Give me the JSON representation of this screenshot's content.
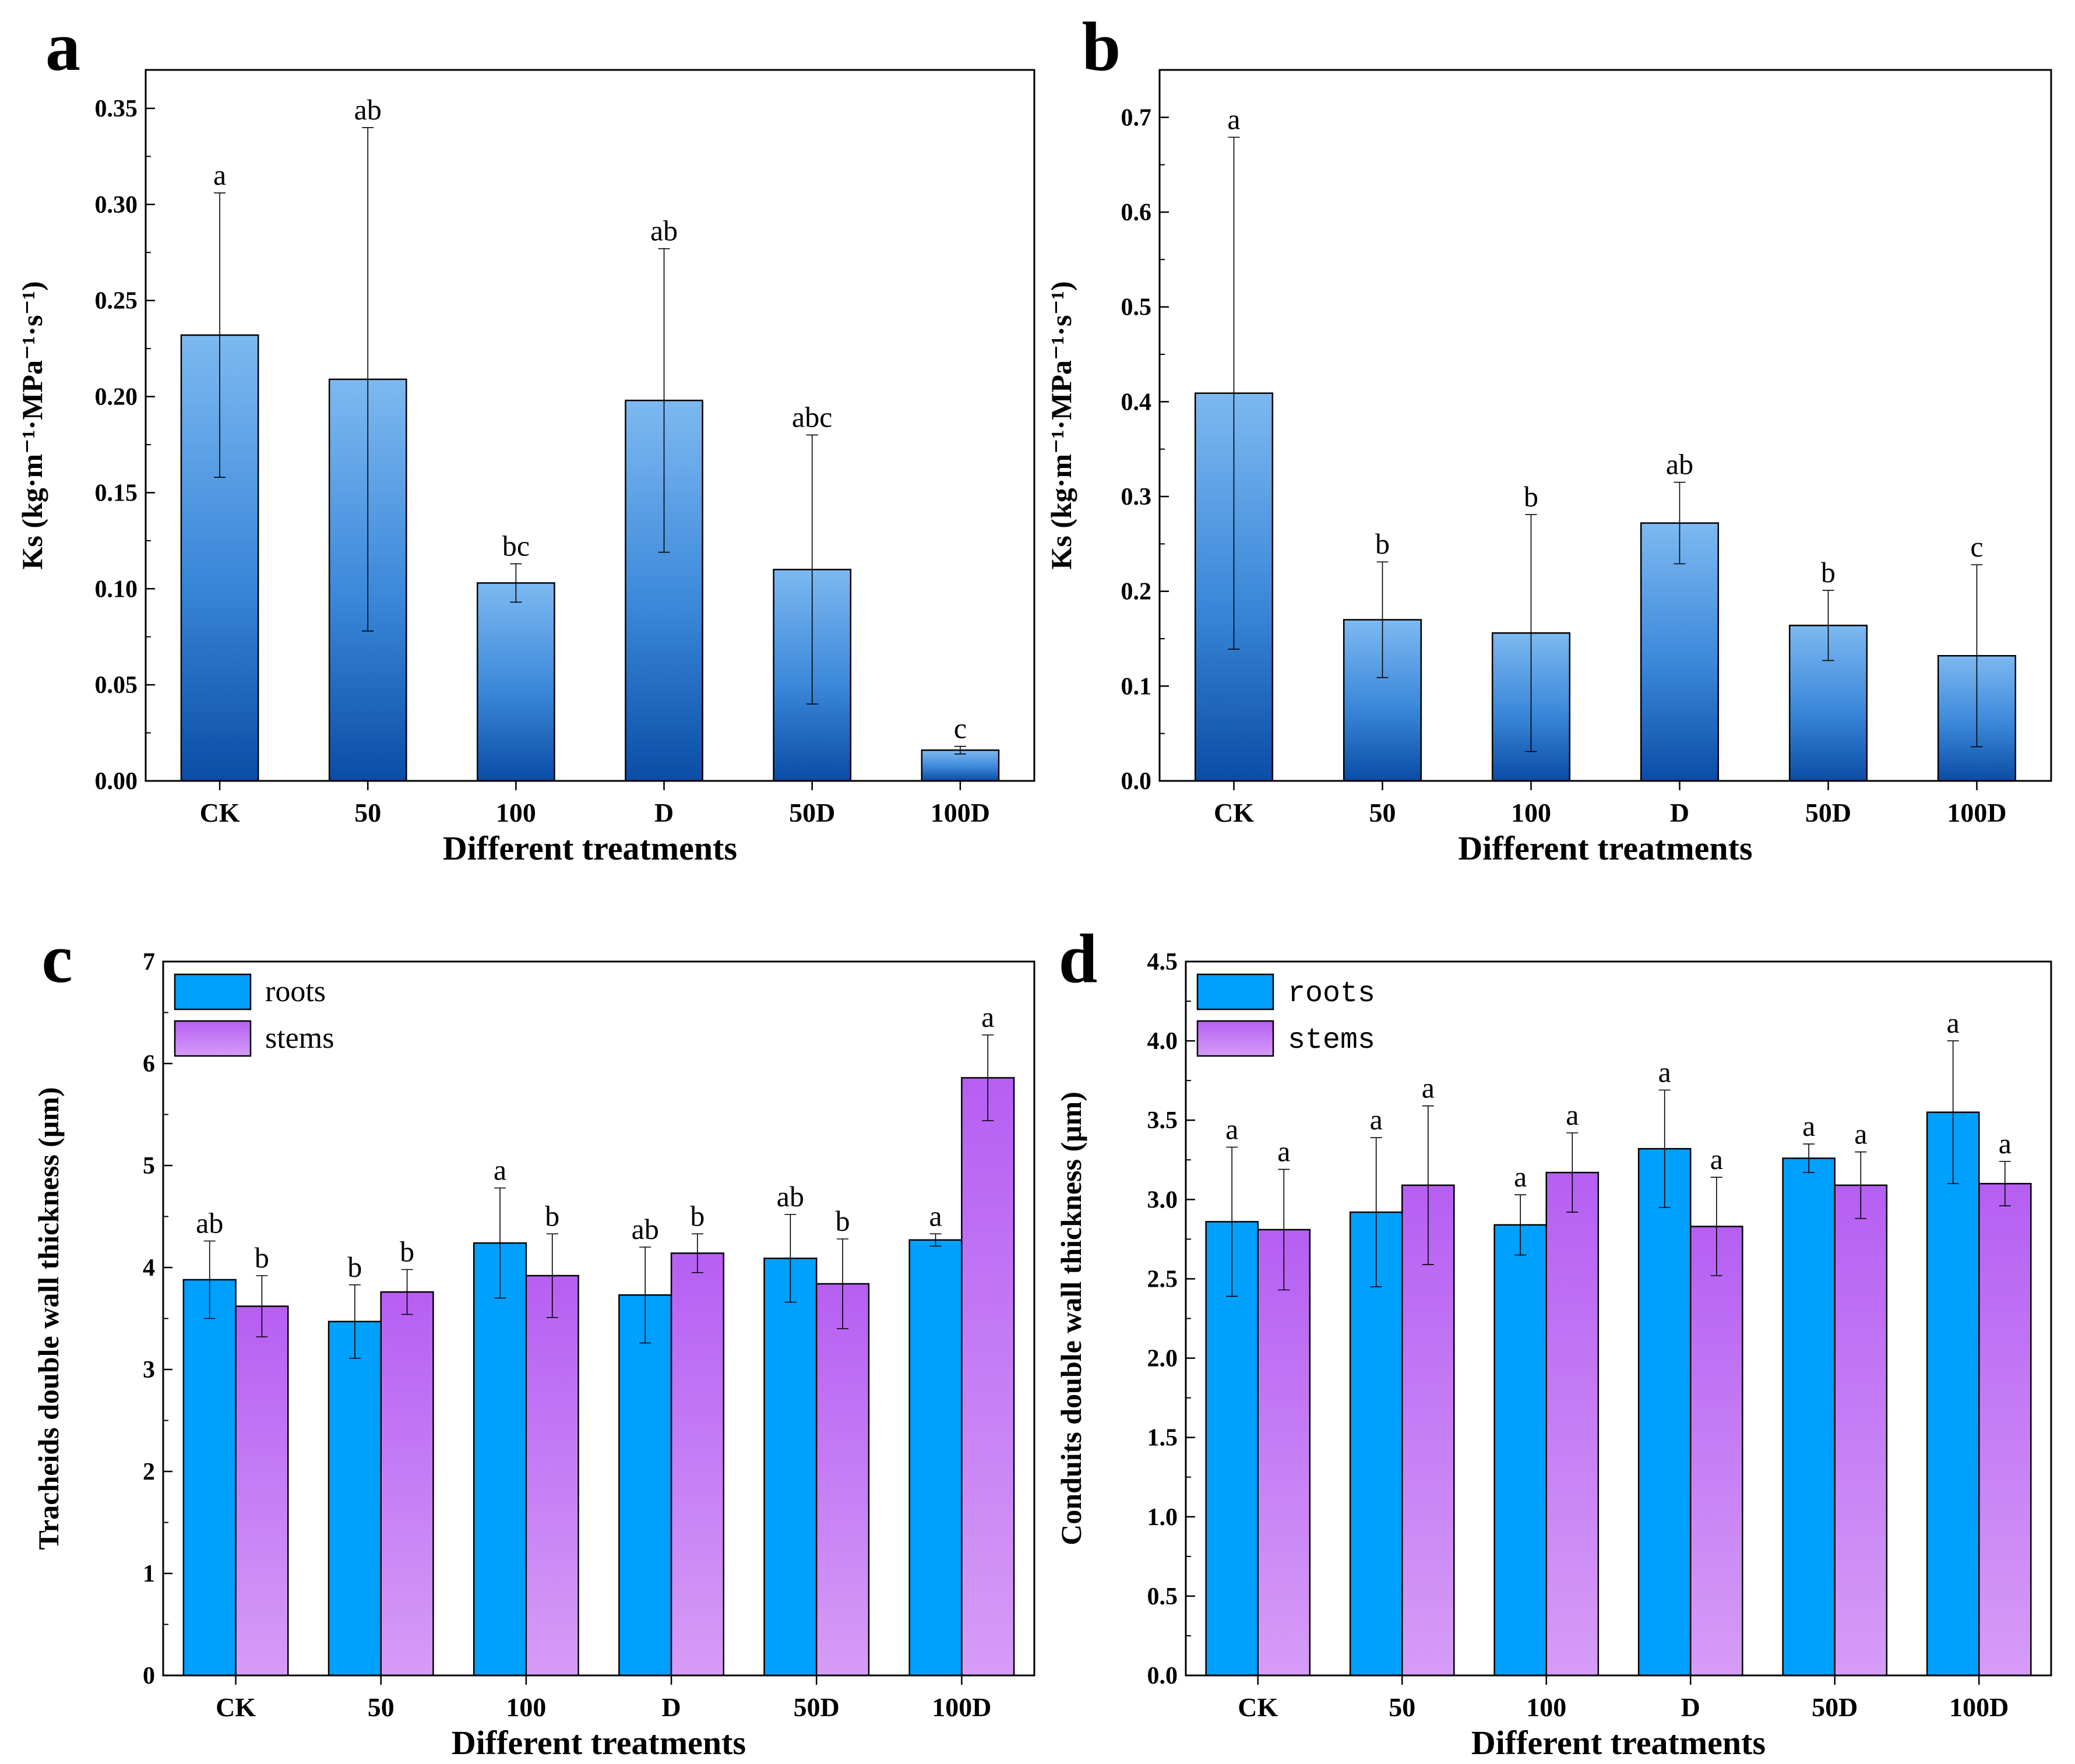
{
  "chart_data": [
    {
      "id": "a",
      "type": "bar",
      "panel_label": "a",
      "title": "",
      "xlabel": "Different treatments",
      "ylabel": "Ks (kg·m⁻¹·MPa⁻¹·s⁻¹)",
      "ylim": [
        0,
        0.37
      ],
      "yticks": [
        0.0,
        0.05,
        0.1,
        0.15,
        0.2,
        0.25,
        0.3,
        0.35
      ],
      "ytick_decimals": 2,
      "categories": [
        "CK",
        "50",
        "100",
        "D",
        "50D",
        "100D"
      ],
      "series": [
        {
          "name": "Ks",
          "style": "blue",
          "values": [
            0.232,
            0.209,
            0.103,
            0.198,
            0.11,
            0.016
          ],
          "errors": [
            0.074,
            0.131,
            0.01,
            0.079,
            0.07,
            0.002
          ],
          "labels": [
            "a",
            "ab",
            "bc",
            "ab",
            "abc",
            "c"
          ]
        }
      ],
      "legend": null,
      "grid": false
    },
    {
      "id": "b",
      "type": "bar",
      "panel_label": "b",
      "title": "",
      "xlabel": "Different treatments",
      "ylabel": "Ks (kg·m⁻¹·MPa⁻¹·s⁻¹)",
      "ylim": [
        0,
        0.75
      ],
      "yticks": [
        0.0,
        0.1,
        0.2,
        0.3,
        0.4,
        0.5,
        0.6,
        0.7
      ],
      "ytick_decimals": 1,
      "categories": [
        "CK",
        "50",
        "100",
        "D",
        "50D",
        "100D"
      ],
      "series": [
        {
          "name": "Ks",
          "style": "blue",
          "values": [
            0.409,
            0.17,
            0.156,
            0.272,
            0.164,
            0.132
          ],
          "errors": [
            0.27,
            0.061,
            0.125,
            0.043,
            0.037,
            0.096
          ],
          "labels": [
            "a",
            "b",
            "b",
            "ab",
            "b",
            "c"
          ]
        }
      ],
      "legend": null,
      "grid": false
    },
    {
      "id": "c",
      "type": "bar",
      "panel_label": "c",
      "title": "",
      "xlabel": "Different treatments",
      "ylabel": "Tracheids double wall thickness (μm)",
      "ylim": [
        0,
        7
      ],
      "yticks": [
        0,
        1,
        2,
        3,
        4,
        5,
        6,
        7
      ],
      "ytick_decimals": 0,
      "categories": [
        "CK",
        "50",
        "100",
        "D",
        "50D",
        "100D"
      ],
      "series": [
        {
          "name": "roots",
          "style": "cyan",
          "values": [
            3.88,
            3.47,
            4.24,
            3.73,
            4.09,
            4.27
          ],
          "errors": [
            0.38,
            0.36,
            0.54,
            0.47,
            0.43,
            0.06
          ],
          "labels": [
            "ab",
            "b",
            "a",
            "ab",
            "ab",
            "a"
          ]
        },
        {
          "name": "stems",
          "style": "purple",
          "values": [
            3.62,
            3.76,
            3.92,
            4.14,
            3.84,
            5.86
          ],
          "errors": [
            0.3,
            0.22,
            0.41,
            0.19,
            0.44,
            0.42
          ],
          "labels": [
            "b",
            "b",
            "b",
            "b",
            "b",
            "a"
          ]
        }
      ],
      "legend": {
        "position": "top-left",
        "font": "serif",
        "entries": [
          "roots",
          "stems"
        ]
      },
      "grid": false
    },
    {
      "id": "d",
      "type": "bar",
      "panel_label": "d",
      "title": "",
      "xlabel": "Different treatments",
      "ylabel": "Conduits double wall thickness (μm)",
      "ylim": [
        0,
        4.5
      ],
      "yticks": [
        0.0,
        0.5,
        1.0,
        1.5,
        2.0,
        2.5,
        3.0,
        3.5,
        4.0,
        4.5
      ],
      "ytick_decimals": 1,
      "categories": [
        "CK",
        "50",
        "100",
        "D",
        "50D",
        "100D"
      ],
      "series": [
        {
          "name": "roots",
          "style": "cyan",
          "values": [
            2.86,
            2.92,
            2.84,
            3.32,
            3.26,
            3.55
          ],
          "errors": [
            0.47,
            0.47,
            0.19,
            0.37,
            0.09,
            0.45
          ],
          "labels": [
            "a",
            "a",
            "a",
            "a",
            "a",
            "a"
          ]
        },
        {
          "name": "stems",
          "style": "purple",
          "values": [
            2.81,
            3.09,
            3.17,
            2.83,
            3.09,
            3.1
          ],
          "errors": [
            0.38,
            0.5,
            0.25,
            0.31,
            0.21,
            0.14
          ],
          "labels": [
            "a",
            "a",
            "a",
            "a",
            "a",
            "a"
          ]
        }
      ],
      "legend": {
        "position": "top-left",
        "font": "mono",
        "entries": [
          "roots",
          "stems"
        ]
      },
      "grid": false
    }
  ]
}
